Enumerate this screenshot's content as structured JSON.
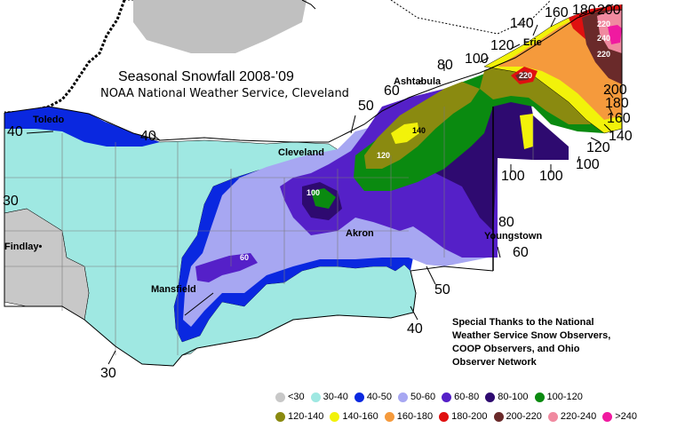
{
  "title": "Seasonal Snowfall 2008-'09",
  "subtitle": "NOAA National Weather Service, Cleveland",
  "credit": "Special Thanks to the National Weather Service Snow Observers, COOP Observers, and Ohio Observer Network",
  "cities": {
    "toledo": "Toledo",
    "findlay": "Findlay",
    "cleveland": "Cleveland",
    "akron": "Akron",
    "youngstown": "Youngstown",
    "mansfield": "Mansfield",
    "ashtabula": "Ashtabula",
    "erie": "Erie"
  },
  "contours": {
    "c40_west": "40",
    "c40_toledo": "40",
    "c30_west": "30",
    "c30_south": "30",
    "c40_south": "40",
    "c50_east": "50",
    "c50_cle": "50",
    "c60_ash": "60",
    "c80_ash": "80",
    "c100_ash": "100",
    "c120_erie": "120",
    "c140": "140",
    "c160": "160",
    "c180": "180",
    "c200": "200",
    "c200_e": "200",
    "c180_e": "180",
    "c160_e": "160",
    "c140_e": "140",
    "c120_e": "120",
    "c100_e": "100",
    "c100_s1": "100",
    "c100_s2": "100",
    "c80_y": "80",
    "c60_y": "60"
  },
  "small_labels": {
    "s100_geauga": "100",
    "s120": "120",
    "s140": "140",
    "s60": "60",
    "s220": "220",
    "s240": "240",
    "s220b": "220",
    "s220c": "220"
  },
  "legend": [
    {
      "label": "<30",
      "color": "#c8c8c8"
    },
    {
      "label": "30-40",
      "color": "#9fe8e2"
    },
    {
      "label": "40-50",
      "color": "#0a28e0"
    },
    {
      "label": "50-60",
      "color": "#a7a7f2"
    },
    {
      "label": "60-80",
      "color": "#5520c8"
    },
    {
      "label": "80-100",
      "color": "#2e0a70"
    },
    {
      "label": "100-120",
      "color": "#0a8a10"
    },
    {
      "label": "120-140",
      "color": "#8a8a10"
    },
    {
      "label": "140-160",
      "color": "#f2f20a"
    },
    {
      "label": "160-180",
      "color": "#f59a3c"
    },
    {
      "label": "180-200",
      "color": "#e01010"
    },
    {
      "label": "200-220",
      "color": "#6a2a2a"
    },
    {
      "label": "220-240",
      "color": "#f08aa0"
    },
    {
      "label": ">240",
      "color": "#f01aa0"
    }
  ],
  "colors": {
    "lake": "#ffffff",
    "land_bg": "#ffffff",
    "gray": "#c8c8c8",
    "cyan": "#9fe8e2",
    "blue": "#0a28e0",
    "lav": "#a7a7f2",
    "purple": "#5520c8",
    "dpurple": "#2e0a70",
    "green": "#0a8a10",
    "olive": "#8a8a10",
    "yellow": "#f2f20a",
    "orange": "#f59a3c",
    "red": "#e01010",
    "brown": "#6a2a2a",
    "pink": "#f08aa0",
    "magenta": "#f01aa0"
  }
}
